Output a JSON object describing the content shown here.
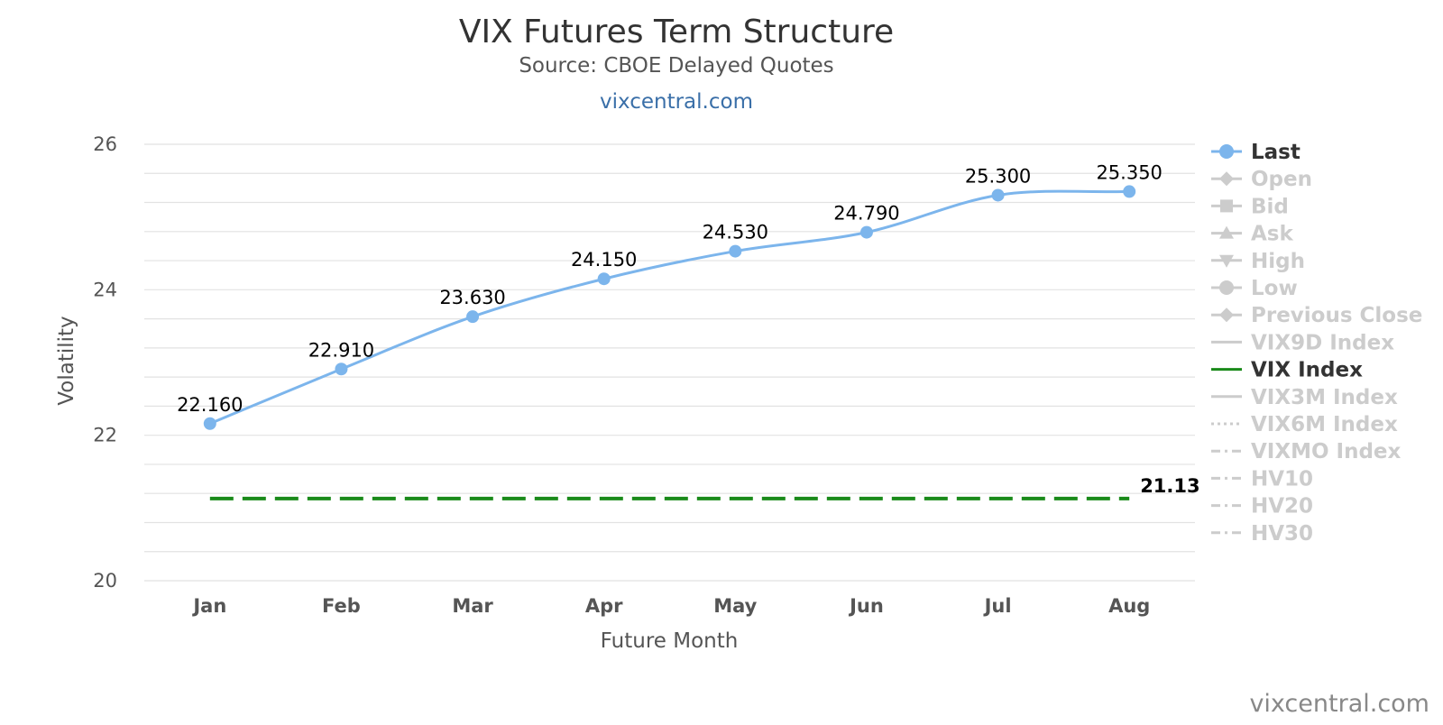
{
  "header": {
    "title": "VIX Futures Term Structure",
    "subtitle": "Source: CBOE Delayed Quotes",
    "site_link": "vixcentral.com"
  },
  "credit": "vixcentral.com",
  "colors": {
    "last": "#7cb5ec",
    "vix_index": "#1a8a1a",
    "legend_inactive": "#cccccc",
    "legend_active_text": "#333333",
    "grid": "#e2e2e2"
  },
  "chart_data": {
    "type": "line",
    "title": "VIX Futures Term Structure",
    "subtitle": "Source: CBOE Delayed Quotes",
    "xlabel": "Future Month",
    "ylabel": "Volatility",
    "ylim": [
      20,
      26
    ],
    "yticks": [
      "20",
      "22",
      "24",
      "26"
    ],
    "grid": true,
    "categories": [
      "Jan",
      "Feb",
      "Mar",
      "Apr",
      "May",
      "Jun",
      "Jul",
      "Aug"
    ],
    "legend_position": "right",
    "series": [
      {
        "name": "Last",
        "values": [
          22.16,
          22.91,
          23.63,
          24.15,
          24.53,
          24.79,
          25.3,
          25.35
        ],
        "labels": [
          "22.160",
          "22.910",
          "23.630",
          "24.150",
          "24.530",
          "24.790",
          "25.300",
          "25.350"
        ]
      },
      {
        "name": "VIX Index",
        "value": 21.13,
        "label": "21.13"
      }
    ],
    "legend": [
      {
        "name": "Last",
        "active": true,
        "symbol": "circle",
        "dash": "solid"
      },
      {
        "name": "Open",
        "active": false,
        "symbol": "diamond",
        "dash": "solid"
      },
      {
        "name": "Bid",
        "active": false,
        "symbol": "square",
        "dash": "solid"
      },
      {
        "name": "Ask",
        "active": false,
        "symbol": "triangle",
        "dash": "solid"
      },
      {
        "name": "High",
        "active": false,
        "symbol": "triangle-down",
        "dash": "solid"
      },
      {
        "name": "Low",
        "active": false,
        "symbol": "circle",
        "dash": "solid"
      },
      {
        "name": "Previous Close",
        "active": false,
        "symbol": "diamond",
        "dash": "solid"
      },
      {
        "name": "VIX9D Index",
        "active": false,
        "symbol": "none",
        "dash": "solid"
      },
      {
        "name": "VIX Index",
        "active": true,
        "symbol": "none",
        "dash": "solid"
      },
      {
        "name": "VIX3M Index",
        "active": false,
        "symbol": "none",
        "dash": "solid"
      },
      {
        "name": "VIX6M Index",
        "active": false,
        "symbol": "none",
        "dash": "dot"
      },
      {
        "name": "VIXMO Index",
        "active": false,
        "symbol": "none",
        "dash": "dashdot"
      },
      {
        "name": "HV10",
        "active": false,
        "symbol": "none",
        "dash": "dashdot"
      },
      {
        "name": "HV20",
        "active": false,
        "symbol": "none",
        "dash": "dashdot"
      },
      {
        "name": "HV30",
        "active": false,
        "symbol": "none",
        "dash": "dashdot"
      }
    ]
  }
}
